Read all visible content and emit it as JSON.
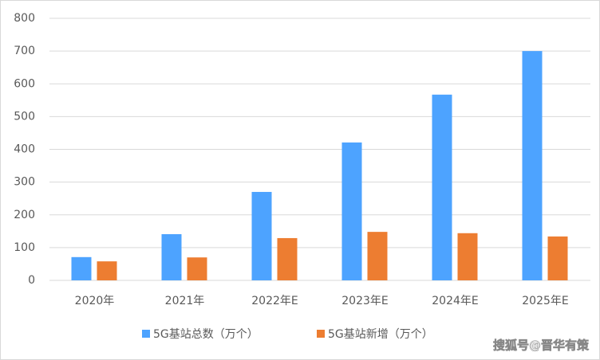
{
  "chart_data": {
    "type": "bar",
    "categories": [
      "2020年",
      "2021年",
      "2022年E",
      "2023年E",
      "2024年E",
      "2025年E"
    ],
    "series": [
      {
        "name": "5G基站总数（万个）",
        "color": "#4da3ff",
        "values": [
          71,
          141,
          270,
          421,
          567,
          700
        ]
      },
      {
        "name": "5G基站新增（万个）",
        "color": "#ed7d31",
        "values": [
          58,
          70,
          129,
          148,
          144,
          134
        ]
      }
    ],
    "ylim": [
      0,
      800
    ],
    "yticks": [
      0,
      100,
      200,
      300,
      400,
      500,
      600,
      700,
      800
    ],
    "grid": true,
    "legend": "bottom",
    "watermark": "搜狐号@晋华有策"
  }
}
